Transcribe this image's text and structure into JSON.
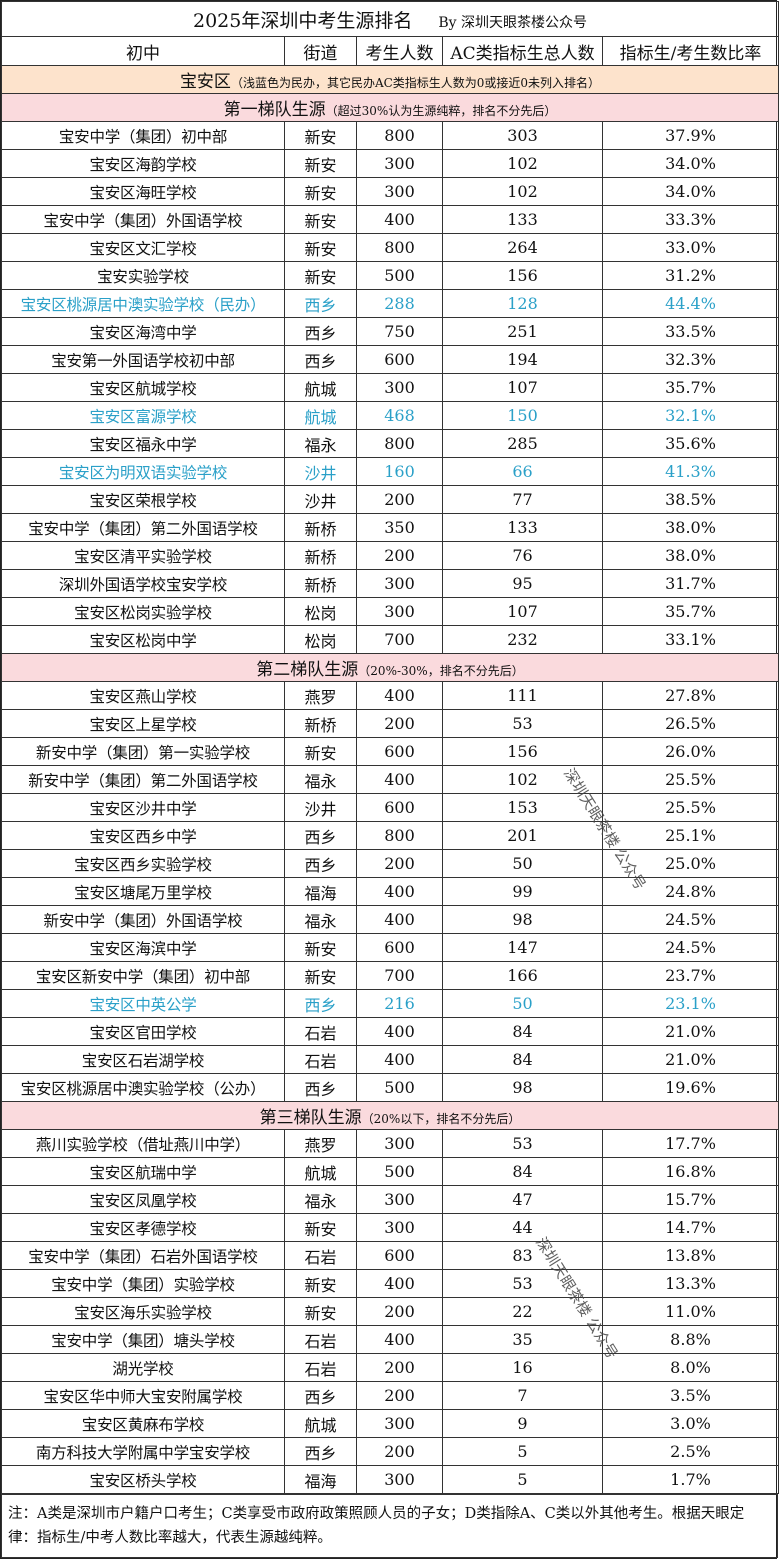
{
  "title": "2025年深圳中考生源排名",
  "byline": "By 深圳天眼茶楼公众号",
  "headers": [
    "初中",
    "街道",
    "考生人数",
    "AC类指标生总人数",
    "指标生/考生数比率"
  ],
  "area": {
    "name": "宝安区",
    "note": "（浅蓝色为民办，其它民办AC类指标生人数为0或接近0未列入排名）"
  },
  "colors": {
    "private_text": "#2aa0c8",
    "area_bg": "#fde3cc",
    "tier_bg": "#fadadd"
  },
  "tiers": [
    {
      "title": "第一梯队生源",
      "note": "（超过30%认为生源纯粹，排名不分先后）",
      "rows": [
        {
          "school": "宝安中学（集团）初中部",
          "street": "新安",
          "count": "800",
          "ac": "303",
          "ratio": "37.9%",
          "private": false
        },
        {
          "school": "宝安区海韵学校",
          "street": "新安",
          "count": "300",
          "ac": "102",
          "ratio": "34.0%",
          "private": false
        },
        {
          "school": "宝安区海旺学校",
          "street": "新安",
          "count": "300",
          "ac": "102",
          "ratio": "34.0%",
          "private": false
        },
        {
          "school": "宝安中学（集团）外国语学校",
          "street": "新安",
          "count": "400",
          "ac": "133",
          "ratio": "33.3%",
          "private": false
        },
        {
          "school": "宝安区文汇学校",
          "street": "新安",
          "count": "800",
          "ac": "264",
          "ratio": "33.0%",
          "private": false
        },
        {
          "school": "宝安实验学校",
          "street": "新安",
          "count": "500",
          "ac": "156",
          "ratio": "31.2%",
          "private": false
        },
        {
          "school": "宝安区桃源居中澳实验学校（民办）",
          "street": "西乡",
          "count": "288",
          "ac": "128",
          "ratio": "44.4%",
          "private": true
        },
        {
          "school": "宝安区海湾中学",
          "street": "西乡",
          "count": "750",
          "ac": "251",
          "ratio": "33.5%",
          "private": false
        },
        {
          "school": "宝安第一外国语学校初中部",
          "street": "西乡",
          "count": "600",
          "ac": "194",
          "ratio": "32.3%",
          "private": false
        },
        {
          "school": "宝安区航城学校",
          "street": "航城",
          "count": "300",
          "ac": "107",
          "ratio": "35.7%",
          "private": false
        },
        {
          "school": "宝安区富源学校",
          "street": "航城",
          "count": "468",
          "ac": "150",
          "ratio": "32.1%",
          "private": true
        },
        {
          "school": "宝安区福永中学",
          "street": "福永",
          "count": "800",
          "ac": "285",
          "ratio": "35.6%",
          "private": false
        },
        {
          "school": "宝安区为明双语实验学校",
          "street": "沙井",
          "count": "160",
          "ac": "66",
          "ratio": "41.3%",
          "private": true
        },
        {
          "school": "宝安区荣根学校",
          "street": "沙井",
          "count": "200",
          "ac": "77",
          "ratio": "38.5%",
          "private": false
        },
        {
          "school": "宝安中学（集团）第二外国语学校",
          "street": "新桥",
          "count": "350",
          "ac": "133",
          "ratio": "38.0%",
          "private": false
        },
        {
          "school": "宝安区清平实验学校",
          "street": "新桥",
          "count": "200",
          "ac": "76",
          "ratio": "38.0%",
          "private": false
        },
        {
          "school": "深圳外国语学校宝安学校",
          "street": "新桥",
          "count": "300",
          "ac": "95",
          "ratio": "31.7%",
          "private": false
        },
        {
          "school": "宝安区松岗实验学校",
          "street": "松岗",
          "count": "300",
          "ac": "107",
          "ratio": "35.7%",
          "private": false
        },
        {
          "school": "宝安区松岗中学",
          "street": "松岗",
          "count": "700",
          "ac": "232",
          "ratio": "33.1%",
          "private": false
        }
      ]
    },
    {
      "title": "第二梯队生源",
      "note": "（20%-30%，排名不分先后）",
      "rows": [
        {
          "school": "宝安区燕山学校",
          "street": "燕罗",
          "count": "400",
          "ac": "111",
          "ratio": "27.8%",
          "private": false
        },
        {
          "school": "宝安区上星学校",
          "street": "新桥",
          "count": "200",
          "ac": "53",
          "ratio": "26.5%",
          "private": false
        },
        {
          "school": "新安中学（集团）第一实验学校",
          "street": "新安",
          "count": "600",
          "ac": "156",
          "ratio": "26.0%",
          "private": false
        },
        {
          "school": "新安中学（集团）第二外国语学校",
          "street": "福永",
          "count": "400",
          "ac": "102",
          "ratio": "25.5%",
          "private": false
        },
        {
          "school": "宝安区沙井中学",
          "street": "沙井",
          "count": "600",
          "ac": "153",
          "ratio": "25.5%",
          "private": false
        },
        {
          "school": "宝安区西乡中学",
          "street": "西乡",
          "count": "800",
          "ac": "201",
          "ratio": "25.1%",
          "private": false
        },
        {
          "school": "宝安区西乡实验学校",
          "street": "西乡",
          "count": "200",
          "ac": "50",
          "ratio": "25.0%",
          "private": false
        },
        {
          "school": "宝安区塘尾万里学校",
          "street": "福海",
          "count": "400",
          "ac": "99",
          "ratio": "24.8%",
          "private": false
        },
        {
          "school": "新安中学（集团）外国语学校",
          "street": "福永",
          "count": "400",
          "ac": "98",
          "ratio": "24.5%",
          "private": false
        },
        {
          "school": "宝安区海滨中学",
          "street": "新安",
          "count": "600",
          "ac": "147",
          "ratio": "24.5%",
          "private": false
        },
        {
          "school": "宝安区新安中学（集团）初中部",
          "street": "新安",
          "count": "700",
          "ac": "166",
          "ratio": "23.7%",
          "private": false
        },
        {
          "school": "宝安区中英公学",
          "street": "西乡",
          "count": "216",
          "ac": "50",
          "ratio": "23.1%",
          "private": true
        },
        {
          "school": "宝安区官田学校",
          "street": "石岩",
          "count": "400",
          "ac": "84",
          "ratio": "21.0%",
          "private": false
        },
        {
          "school": "宝安区石岩湖学校",
          "street": "石岩",
          "count": "400",
          "ac": "84",
          "ratio": "21.0%",
          "private": false
        },
        {
          "school": "宝安区桃源居中澳实验学校（公办）",
          "street": "西乡",
          "count": "500",
          "ac": "98",
          "ratio": "19.6%",
          "private": false
        }
      ]
    },
    {
      "title": "第三梯队生源",
      "note": "（20%以下，排名不分先后）",
      "rows": [
        {
          "school": "燕川实验学校（借址燕川中学）",
          "street": "燕罗",
          "count": "300",
          "ac": "53",
          "ratio": "17.7%",
          "private": false
        },
        {
          "school": "宝安区航瑞中学",
          "street": "航城",
          "count": "500",
          "ac": "84",
          "ratio": "16.8%",
          "private": false
        },
        {
          "school": "宝安区凤凰学校",
          "street": "福永",
          "count": "300",
          "ac": "47",
          "ratio": "15.7%",
          "private": false
        },
        {
          "school": "宝安区孝德学校",
          "street": "新安",
          "count": "300",
          "ac": "44",
          "ratio": "14.7%",
          "private": false
        },
        {
          "school": "宝安中学（集团）石岩外国语学校",
          "street": "石岩",
          "count": "600",
          "ac": "83",
          "ratio": "13.8%",
          "private": false
        },
        {
          "school": "宝安中学（集团）实验学校",
          "street": "新安",
          "count": "400",
          "ac": "53",
          "ratio": "13.3%",
          "private": false
        },
        {
          "school": "宝安区海乐实验学校",
          "street": "新安",
          "count": "200",
          "ac": "22",
          "ratio": "11.0%",
          "private": false
        },
        {
          "school": "宝安中学（集团）塘头学校",
          "street": "石岩",
          "count": "400",
          "ac": "35",
          "ratio": "8.8%",
          "private": false
        },
        {
          "school": "湖光学校",
          "street": "石岩",
          "count": "200",
          "ac": "16",
          "ratio": "8.0%",
          "private": false
        },
        {
          "school": "宝安区华中师大宝安附属学校",
          "street": "西乡",
          "count": "200",
          "ac": "7",
          "ratio": "3.5%",
          "private": false
        },
        {
          "school": "宝安区黄麻布学校",
          "street": "航城",
          "count": "300",
          "ac": "9",
          "ratio": "3.0%",
          "private": false
        },
        {
          "school": "南方科技大学附属中学宝安学校",
          "street": "西乡",
          "count": "200",
          "ac": "5",
          "ratio": "2.5%",
          "private": false
        },
        {
          "school": "宝安区桥头学校",
          "street": "福海",
          "count": "300",
          "ac": "5",
          "ratio": "1.7%",
          "private": false
        }
      ]
    }
  ],
  "watermarks": [
    "深圳天眼茶楼 公众号",
    "深圳天眼茶楼 公众号"
  ],
  "footer": "注：A类是深圳市户籍户口考生；C类享受市政府政策照顾人员的子女；D类指除A、C类以外其他考生。根据天眼定律：指标生/中考人数比率越大，代表生源越纯粹。"
}
